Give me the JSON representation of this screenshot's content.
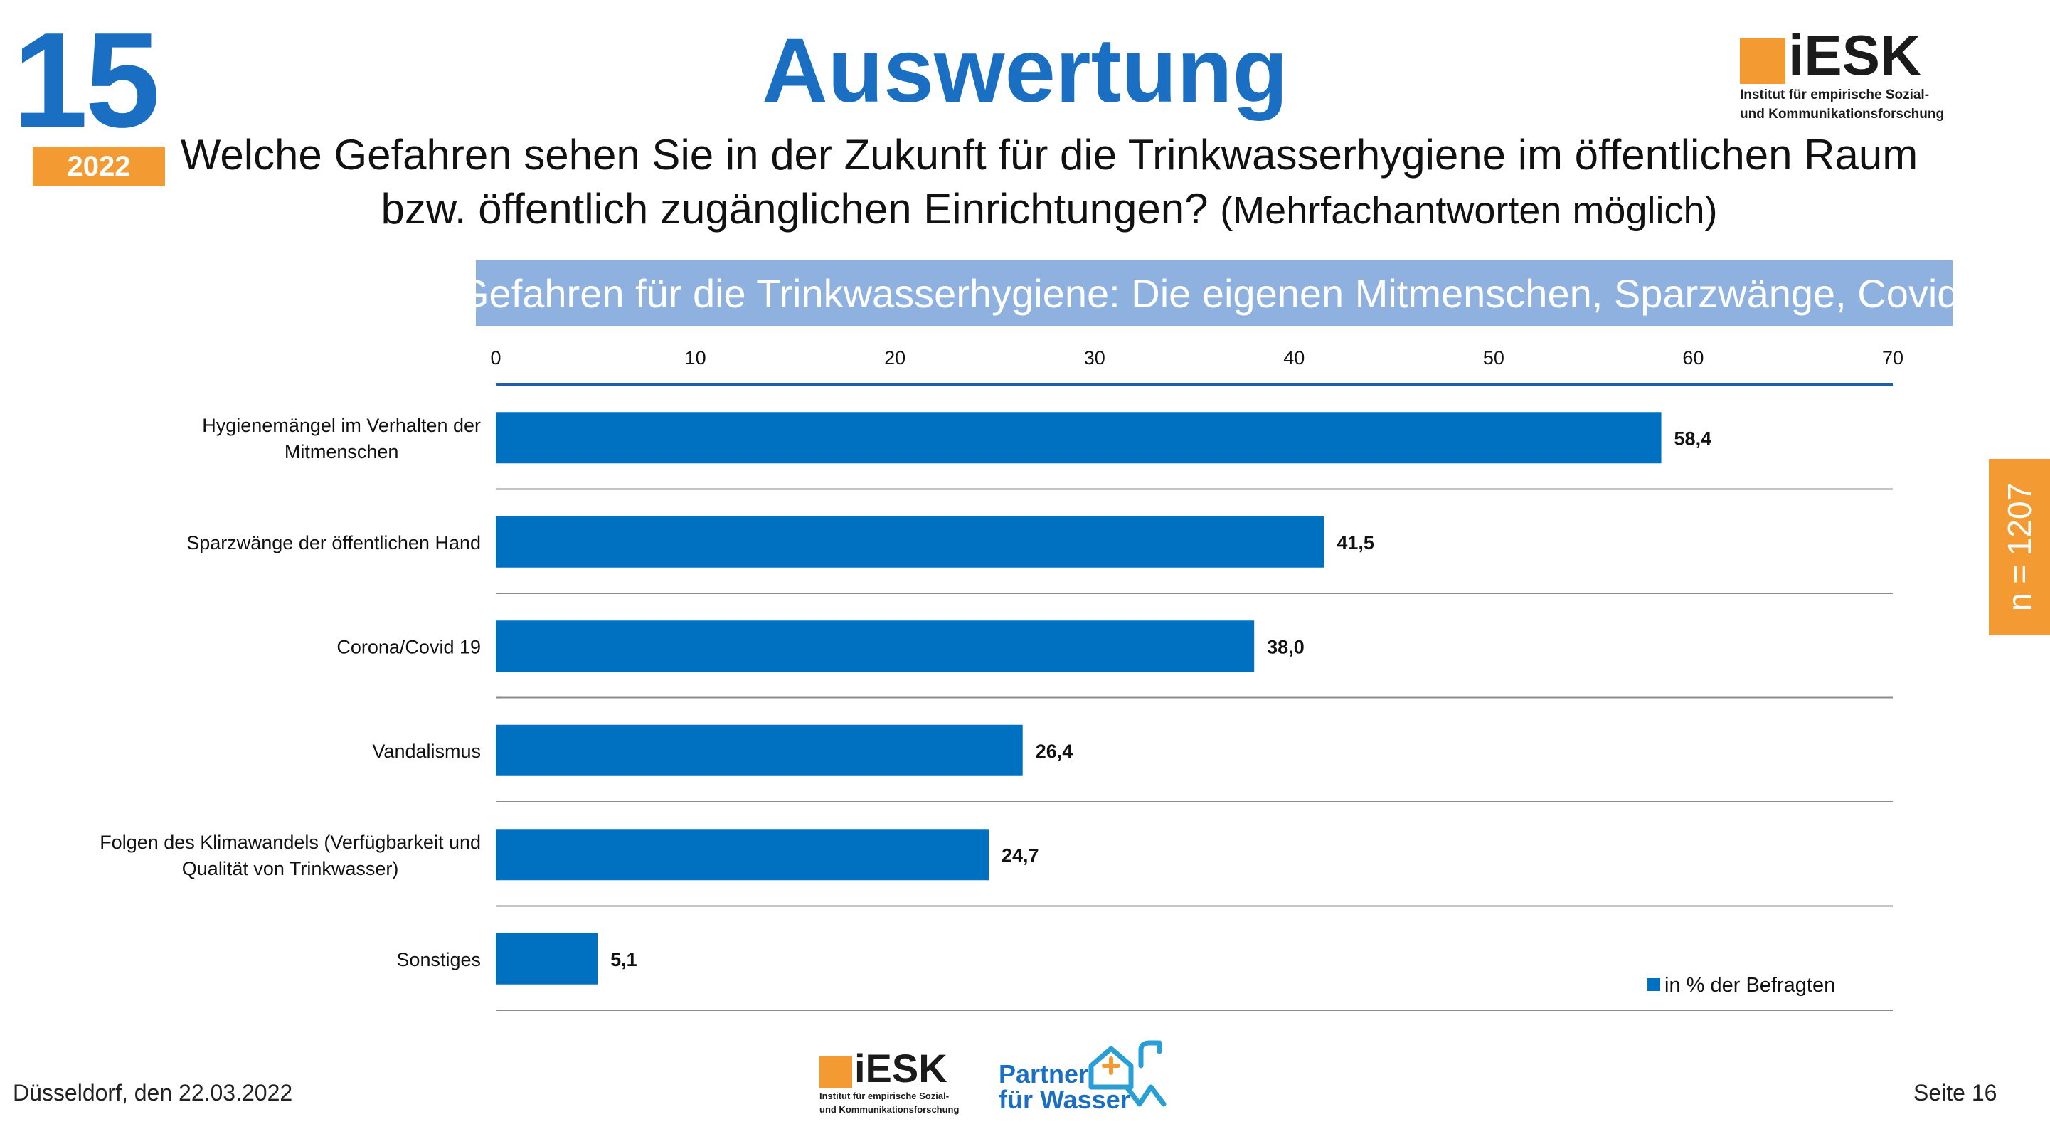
{
  "header": {
    "edition_number": "15",
    "edition_year": "2022",
    "title": "Auswertung",
    "question_line1": "Welche Gefahren sehen Sie in der Zukunft für die Trinkwasserhygiene im öffentlichen Raum",
    "question_line2": "bzw. öffentlich zugänglichen Einrichtungen?",
    "question_note": "(Mehrfachantworten möglich)"
  },
  "logo": {
    "name": "iESK",
    "subtitle_line1": "Institut für empirische Sozial-",
    "subtitle_line2": "und Kommunikationsforschung"
  },
  "banner": "Gefahren für die Trinkwasserhygiene: Die eigenen Mitmenschen, Sparzwänge, Covid!",
  "sample_size": "n = 1207",
  "chart_data": {
    "type": "bar",
    "orientation": "horizontal",
    "categories": [
      [
        "Hygienemängel im Verhalten der",
        "Mitmenschen"
      ],
      [
        "Sparzwänge der öffentlichen Hand"
      ],
      [
        "Corona/Covid 19"
      ],
      [
        "Vandalismus"
      ],
      [
        "Folgen des Klimawandels (Verfügbarkeit und",
        "Qualität von Trinkwasser)"
      ],
      [
        "Sonstiges"
      ]
    ],
    "values": [
      58.4,
      41.5,
      38.0,
      26.4,
      24.7,
      5.1
    ],
    "value_labels": [
      "58,4",
      "41,5",
      "38,0",
      "26,4",
      "24,7",
      "5,1"
    ],
    "x_ticks": [
      0,
      10,
      20,
      30,
      40,
      50,
      60,
      70
    ],
    "xlim": [
      0,
      70
    ],
    "axis_position": "top",
    "series_name": "in % der Befragten",
    "legend_position": "bottom-right",
    "bar_color": "#0070c0"
  },
  "footer": {
    "date": "Düsseldorf, den 22.03.2022",
    "page": "Seite 16",
    "partner_line1": "Partner",
    "partner_line2": "für Wasser"
  },
  "colors": {
    "accent_blue": "#1a6fc2",
    "accent_orange": "#f39a32",
    "banner_blue": "#8fb1e0"
  }
}
